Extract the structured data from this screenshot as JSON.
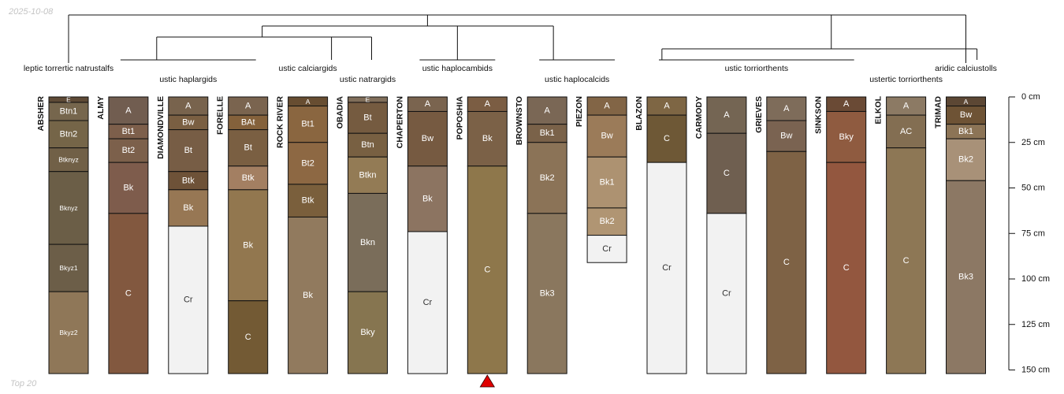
{
  "header": {
    "date": "2025-10-08"
  },
  "footer": {
    "note": "Top 20"
  },
  "chart_data": {
    "type": "soil-profile-sketch",
    "depth_unit": "cm",
    "depth_range": [
      0,
      150
    ],
    "depth_ticks": [
      0,
      25,
      50,
      75,
      100,
      125,
      150
    ],
    "depth_tick_labels": [
      "0 cm",
      "25 cm",
      "50 cm",
      "75 cm",
      "100 cm",
      "125 cm",
      "150 cm"
    ],
    "highlighted_profile": "POPOSHIA",
    "profiles": [
      {
        "name": "ABSHER",
        "bottom": 150,
        "horizons": [
          {
            "name": "E",
            "top": 0,
            "bottom": 3,
            "color": "#5e4a36"
          },
          {
            "name": "Btn1",
            "top": 3,
            "bottom": 13,
            "color": "#76664d"
          },
          {
            "name": "Btn2",
            "top": 13,
            "bottom": 28,
            "color": "#756548"
          },
          {
            "name": "Btknyz",
            "top": 28,
            "bottom": 41,
            "color": "#716047"
          },
          {
            "name": "Bknyz",
            "top": 41,
            "bottom": 81,
            "color": "#6b5e47"
          },
          {
            "name": "Bkyz1",
            "top": 81,
            "bottom": 107,
            "color": "#6c5e48"
          },
          {
            "name": "Bkyz2",
            "top": 107,
            "bottom": 152,
            "color": "#8f7758"
          }
        ]
      },
      {
        "name": "ALMY",
        "bottom": 150,
        "horizons": [
          {
            "name": "A",
            "top": 0,
            "bottom": 15,
            "color": "#715d50"
          },
          {
            "name": "Bt1",
            "top": 15,
            "bottom": 23,
            "color": "#7d5f4b"
          },
          {
            "name": "Bt2",
            "top": 23,
            "bottom": 36,
            "color": "#7c604b"
          },
          {
            "name": "Bk",
            "top": 36,
            "bottom": 64,
            "color": "#7e5c4c"
          },
          {
            "name": "C",
            "top": 64,
            "bottom": 152,
            "color": "#82583f"
          }
        ]
      },
      {
        "name": "DIAMONDVILLE",
        "bottom": 150,
        "horizons": [
          {
            "name": "A",
            "top": 0,
            "bottom": 10,
            "color": "#78634d"
          },
          {
            "name": "Bw",
            "top": 10,
            "bottom": 18,
            "color": "#7a5f42"
          },
          {
            "name": "Bt",
            "top": 18,
            "bottom": 41,
            "color": "#775d45"
          },
          {
            "name": "Btk",
            "top": 41,
            "bottom": 51,
            "color": "#6e5238"
          },
          {
            "name": "Bk",
            "top": 51,
            "bottom": 71,
            "color": "#977754"
          },
          {
            "name": "Cr",
            "top": 71,
            "bottom": 152,
            "color": "#f2f2f2"
          }
        ]
      },
      {
        "name": "FORELLE",
        "bottom": 150,
        "horizons": [
          {
            "name": "A",
            "top": 0,
            "bottom": 10,
            "color": "#7a644f"
          },
          {
            "name": "BAt",
            "top": 10,
            "bottom": 18,
            "color": "#84613b"
          },
          {
            "name": "Bt",
            "top": 18,
            "bottom": 38,
            "color": "#7a5f42"
          },
          {
            "name": "Btk",
            "top": 38,
            "bottom": 51,
            "color": "#a37f62"
          },
          {
            "name": "Bk",
            "top": 51,
            "bottom": 112,
            "color": "#92774f"
          },
          {
            "name": "C",
            "top": 112,
            "bottom": 152,
            "color": "#735a34"
          }
        ]
      },
      {
        "name": "ROCK RIVER",
        "bottom": 150,
        "horizons": [
          {
            "name": "A",
            "top": 0,
            "bottom": 5,
            "color": "#674d31"
          },
          {
            "name": "Bt1",
            "top": 5,
            "bottom": 25,
            "color": "#8a6640"
          },
          {
            "name": "Bt2",
            "top": 25,
            "bottom": 48,
            "color": "#8d6843"
          },
          {
            "name": "Btk",
            "top": 48,
            "bottom": 66,
            "color": "#7a5f3c"
          },
          {
            "name": "Bk",
            "top": 66,
            "bottom": 152,
            "color": "#917a5e"
          }
        ]
      },
      {
        "name": "OBADIA",
        "bottom": 150,
        "horizons": [
          {
            "name": "E",
            "top": 0,
            "bottom": 3,
            "color": "#806e5a"
          },
          {
            "name": "Bt",
            "top": 3,
            "bottom": 20,
            "color": "#755b40"
          },
          {
            "name": "Btn",
            "top": 20,
            "bottom": 33,
            "color": "#786042"
          },
          {
            "name": "Btkn",
            "top": 33,
            "bottom": 53,
            "color": "#937b55"
          },
          {
            "name": "Bkn",
            "top": 53,
            "bottom": 107,
            "color": "#7a6d5a"
          },
          {
            "name": "Bky",
            "top": 107,
            "bottom": 152,
            "color": "#867550"
          }
        ]
      },
      {
        "name": "CHAPERTON",
        "bottom": 150,
        "horizons": [
          {
            "name": "A",
            "top": 0,
            "bottom": 8,
            "color": "#7a644f"
          },
          {
            "name": "Bw",
            "top": 8,
            "bottom": 38,
            "color": "#765a41"
          },
          {
            "name": "Bk",
            "top": 38,
            "bottom": 74,
            "color": "#8c7461"
          },
          {
            "name": "Cr",
            "top": 74,
            "bottom": 152,
            "color": "#f2f2f2"
          }
        ]
      },
      {
        "name": "POPOSHIA",
        "bottom": 150,
        "horizons": [
          {
            "name": "A",
            "top": 0,
            "bottom": 8,
            "color": "#7b5d43"
          },
          {
            "name": "Bk",
            "top": 8,
            "bottom": 38,
            "color": "#7b6147"
          },
          {
            "name": "C",
            "top": 38,
            "bottom": 152,
            "color": "#8e774b"
          }
        ]
      },
      {
        "name": "BROWNSTO",
        "bottom": 150,
        "horizons": [
          {
            "name": "A",
            "top": 0,
            "bottom": 15,
            "color": "#7a6755"
          },
          {
            "name": "Bk1",
            "top": 15,
            "bottom": 25,
            "color": "#7a6249"
          },
          {
            "name": "Bk2",
            "top": 25,
            "bottom": 64,
            "color": "#8b7357"
          },
          {
            "name": "Bk3",
            "top": 64,
            "bottom": 152,
            "color": "#8a775e"
          }
        ]
      },
      {
        "name": "PIEZON",
        "bottom": 90,
        "horizons": [
          {
            "name": "A",
            "top": 0,
            "bottom": 10,
            "color": "#826546"
          },
          {
            "name": "Bw",
            "top": 10,
            "bottom": 33,
            "color": "#9b7b59"
          },
          {
            "name": "Bk1",
            "top": 33,
            "bottom": 61,
            "color": "#ad9271"
          },
          {
            "name": "Bk2",
            "top": 61,
            "bottom": 76,
            "color": "#b09573"
          },
          {
            "name": "Cr",
            "top": 76,
            "bottom": 91,
            "color": "#f2f2f2"
          }
        ]
      },
      {
        "name": "BLAZON",
        "bottom": 150,
        "horizons": [
          {
            "name": "A",
            "top": 0,
            "bottom": 10,
            "color": "#7e6644"
          },
          {
            "name": "C",
            "top": 10,
            "bottom": 36,
            "color": "#6e5836"
          },
          {
            "name": "Cr",
            "top": 36,
            "bottom": 152,
            "color": "#f2f2f2"
          }
        ]
      },
      {
        "name": "CARMODY",
        "bottom": 150,
        "horizons": [
          {
            "name": "A",
            "top": 0,
            "bottom": 20,
            "color": "#746553"
          },
          {
            "name": "C",
            "top": 20,
            "bottom": 64,
            "color": "#6f5f50"
          },
          {
            "name": "Cr",
            "top": 64,
            "bottom": 152,
            "color": "#f2f2f2"
          }
        ]
      },
      {
        "name": "GRIEVES",
        "bottom": 150,
        "horizons": [
          {
            "name": "A",
            "top": 0,
            "bottom": 13,
            "color": "#7e6c5a"
          },
          {
            "name": "Bw",
            "top": 13,
            "bottom": 30,
            "color": "#7a6351"
          },
          {
            "name": "C",
            "top": 30,
            "bottom": 152,
            "color": "#7e6245"
          }
        ]
      },
      {
        "name": "SINKSON",
        "bottom": 150,
        "horizons": [
          {
            "name": "A",
            "top": 0,
            "bottom": 8,
            "color": "#6a4a35"
          },
          {
            "name": "Bky",
            "top": 8,
            "bottom": 36,
            "color": "#8f5b40"
          },
          {
            "name": "C",
            "top": 36,
            "bottom": 152,
            "color": "#93573f"
          }
        ]
      },
      {
        "name": "ELKOL",
        "bottom": 150,
        "horizons": [
          {
            "name": "A",
            "top": 0,
            "bottom": 10,
            "color": "#8c7a64"
          },
          {
            "name": "AC",
            "top": 10,
            "bottom": 28,
            "color": "#836e52"
          },
          {
            "name": "C",
            "top": 28,
            "bottom": 152,
            "color": "#8d7755"
          }
        ]
      },
      {
        "name": "TRIMAD",
        "bottom": 150,
        "horizons": [
          {
            "name": "A",
            "top": 0,
            "bottom": 5,
            "color": "#5c4734"
          },
          {
            "name": "Bw",
            "top": 5,
            "bottom": 15,
            "color": "#6e5335"
          },
          {
            "name": "Bk1",
            "top": 15,
            "bottom": 23,
            "color": "#8c7456"
          },
          {
            "name": "Bk2",
            "top": 23,
            "bottom": 46,
            "color": "#a89178"
          },
          {
            "name": "Bk3",
            "top": 46,
            "bottom": 152,
            "color": "#8c7864"
          }
        ]
      }
    ],
    "subgroup_labels": [
      {
        "text": "leptic torrertic natrustalfs",
        "members": [
          "ABSHER"
        ]
      },
      {
        "text": "ustic haplargids",
        "members": [
          "ALMY",
          "DIAMONDVILLE",
          "FORELLE"
        ]
      },
      {
        "text": "ustic calciargids",
        "members": [
          "ROCK RIVER"
        ]
      },
      {
        "text": "ustic natrargids",
        "members": [
          "OBADIA"
        ]
      },
      {
        "text": "ustic haplocambids",
        "members": [
          "CHAPERTON",
          "POPOSHIA"
        ]
      },
      {
        "text": "ustic haplocalcids",
        "members": [
          "BROWNSTO",
          "PIEZON"
        ]
      },
      {
        "text": "ustic torriorthents",
        "members": [
          "BLAZON",
          "CARMODY",
          "GRIEVES",
          "SINKSON"
        ]
      },
      {
        "text": "ustertic torriorthents",
        "members": [
          "ELKOL"
        ]
      },
      {
        "text": "aridic calciustolls",
        "members": [
          "TRIMAD"
        ]
      }
    ]
  }
}
